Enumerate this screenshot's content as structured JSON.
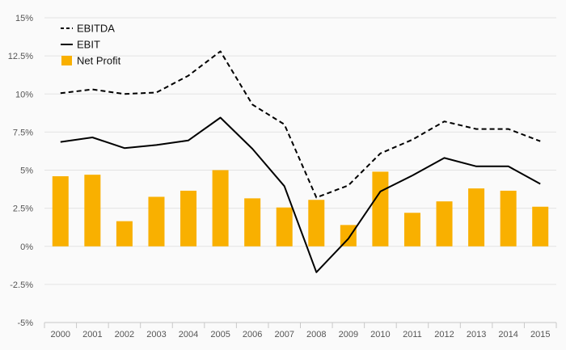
{
  "chart_data": {
    "type": "bar",
    "categories": [
      "2000",
      "2001",
      "2002",
      "2003",
      "2004",
      "2005",
      "2006",
      "2007",
      "2008",
      "2009",
      "2010",
      "2011",
      "2012",
      "2013",
      "2014",
      "2015"
    ],
    "series": [
      {
        "name": "EBITDA",
        "kind": "line",
        "style": "dashed",
        "color": "#000000",
        "values": [
          10.05,
          10.3,
          10.0,
          10.1,
          11.2,
          12.8,
          9.3,
          8.0,
          3.2,
          4.0,
          6.1,
          7.0,
          8.2,
          7.7,
          7.7,
          6.9
        ]
      },
      {
        "name": "EBIT",
        "kind": "line",
        "style": "solid",
        "color": "#000000",
        "values": [
          6.85,
          7.15,
          6.45,
          6.65,
          6.95,
          8.45,
          6.4,
          3.95,
          -1.7,
          0.5,
          3.6,
          4.65,
          5.8,
          5.25,
          5.25,
          4.1
        ]
      },
      {
        "name": "Net Profit",
        "kind": "bar",
        "color": "#f9b000",
        "values": [
          4.6,
          4.7,
          1.65,
          3.25,
          3.65,
          5.0,
          3.15,
          2.55,
          3.05,
          1.4,
          4.9,
          2.2,
          2.95,
          3.8,
          3.65,
          2.6
        ]
      }
    ],
    "y_ticks": [
      "15%",
      "12.5%",
      "10%",
      "7.5%",
      "5%",
      "2.5%",
      "0%",
      "-2.5%",
      "-5%"
    ],
    "ylim": [
      -5,
      15
    ],
    "grid": true,
    "legend_position": "top-left"
  }
}
